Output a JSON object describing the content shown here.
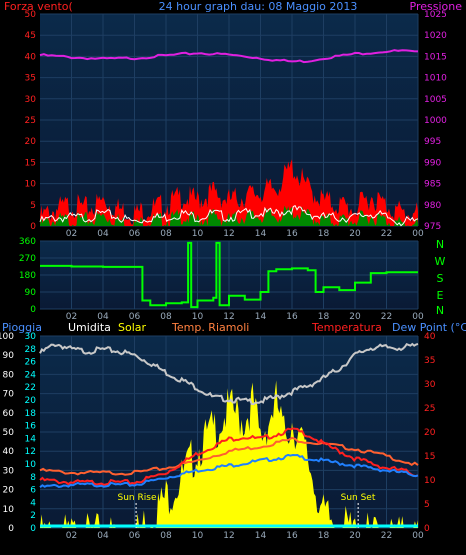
{
  "colors": {
    "background": "#000000",
    "panel_top": "#0b2a4a",
    "panel_bottom": "#0a1a35",
    "grid": "#1e3e62",
    "wind_gust": "#ff0000",
    "wind_avg": "#008800",
    "wind_line": "#ffffff",
    "pressure": "#e020e0",
    "direction": "#00ff00",
    "rain": "#00ffff",
    "humidity": "#c8c8c8",
    "solar": "#ffff00",
    "temp_indoor": "#ff6030",
    "temperature": "#ff2020",
    "dew_point": "#2080ff",
    "label_red": "#ff2020",
    "label_blue": "#4a90ff",
    "label_magenta": "#e020e0",
    "label_white": "#ffffff",
    "label_yellow": "#ffff00",
    "label_orange": "#ff8040",
    "label_green": "#00ff00"
  },
  "header": {
    "wind_label": "Forza vento(",
    "title": "24 hour graph dau: 08 Maggio 2013",
    "pressure_label": "Pressione"
  },
  "compass": {
    "n": "N",
    "w": "W",
    "s": "S",
    "e": "E",
    "n2": "N"
  },
  "bottom_header": {
    "rain": "Pioggia",
    "humidity": "Umidita",
    "solar": "Solar",
    "indoor_temp": "Temp. Riamoli",
    "temperature": "Temperatura",
    "dew_point": "Dew Point (°C)"
  },
  "annotations": {
    "sunrise": "Sun Rise",
    "sunset": "Sun Set"
  },
  "chart_data": [
    {
      "type": "line",
      "name": "wind-pressure",
      "x_ticks": [
        "02",
        "04",
        "06",
        "08",
        "10",
        "12",
        "14",
        "16",
        "18",
        "20",
        "22",
        "00"
      ],
      "y_left_ticks": [
        "0",
        "5",
        "10",
        "15",
        "20",
        "25",
        "30",
        "35",
        "40",
        "45",
        "50"
      ],
      "ylim_left": [
        0,
        50
      ],
      "y_right_ticks": [
        "975",
        "980",
        "985",
        "990",
        "995",
        "1000",
        "1005",
        "1010",
        "1015",
        "1020",
        "1025"
      ],
      "ylim_right": [
        975,
        1025
      ],
      "series": [
        {
          "role": "pressure",
          "axis": "right",
          "x": [
            0,
            2,
            4,
            6,
            8,
            10,
            12,
            14,
            15,
            16,
            17,
            18,
            20,
            22,
            23,
            24
          ],
          "values": [
            1015.3,
            1014.8,
            1014.4,
            1014.6,
            1015.2,
            1015.8,
            1015.4,
            1014.6,
            1014.1,
            1013.8,
            1013.9,
            1014.6,
            1015.6,
            1016.2,
            1016.3,
            1015.9
          ]
        },
        {
          "role": "gust",
          "axis": "left",
          "x": [
            0,
            1,
            2,
            3,
            4,
            5,
            6,
            7,
            8,
            9,
            10,
            11,
            12,
            13,
            14,
            15,
            16,
            17,
            18,
            19,
            20,
            21,
            22,
            23,
            24
          ],
          "values": [
            3,
            5,
            6,
            5,
            7,
            5,
            4,
            5,
            6,
            8,
            7,
            9,
            7,
            8,
            9,
            10,
            15,
            10,
            7,
            6,
            5,
            8,
            6,
            4,
            4
          ]
        },
        {
          "role": "average",
          "axis": "left",
          "x": [
            0,
            1,
            2,
            3,
            4,
            5,
            6,
            7,
            8,
            9,
            10,
            11,
            12,
            13,
            14,
            15,
            16,
            17,
            18,
            19,
            20,
            21,
            22,
            23,
            24
          ],
          "values": [
            1,
            2,
            2,
            2,
            3,
            2,
            1,
            2,
            2,
            3,
            2,
            3,
            2,
            3,
            3,
            3,
            4,
            3,
            2,
            2,
            2,
            3,
            2,
            1,
            1
          ]
        }
      ]
    },
    {
      "type": "line",
      "name": "wind-direction",
      "x_ticks": [
        "02",
        "04",
        "06",
        "08",
        "10",
        "12",
        "14",
        "16",
        "18",
        "20",
        "22",
        "00"
      ],
      "y_ticks": [
        "0",
        "90",
        "180",
        "270",
        "360"
      ],
      "ylim": [
        0,
        360
      ],
      "series": [
        {
          "role": "direction",
          "x": [
            0,
            1,
            2,
            4,
            5,
            6,
            6.5,
            7,
            8,
            9,
            9.4,
            9.6,
            10,
            11,
            11.2,
            11.4,
            12,
            13,
            14,
            14.5,
            15,
            16,
            17,
            17.5,
            18,
            19,
            20,
            21,
            22,
            23,
            24
          ],
          "values": [
            228,
            228,
            225,
            223,
            223,
            223,
            45,
            20,
            30,
            35,
            350,
            10,
            45,
            60,
            350,
            20,
            70,
            50,
            90,
            200,
            210,
            215,
            205,
            90,
            115,
            100,
            140,
            190,
            195,
            195,
            195
          ]
        }
      ]
    },
    {
      "type": "line",
      "name": "temperature-humidity-solar",
      "x_ticks": [
        "02",
        "04",
        "06",
        "08",
        "10",
        "12",
        "14",
        "16",
        "18",
        "20",
        "22",
        "00"
      ],
      "y_left_outer_ticks": [
        "0",
        "10",
        "20",
        "30",
        "40",
        "50",
        "60",
        "70",
        "80",
        "90",
        "100"
      ],
      "ylim_left_outer": [
        0,
        100
      ],
      "y_left_inner_ticks": [
        "0",
        "2",
        "4",
        "6",
        "8",
        "10",
        "12",
        "14",
        "16",
        "18",
        "20",
        "22",
        "24",
        "26",
        "28",
        "30"
      ],
      "ylim_left_inner": [
        0,
        30
      ],
      "y_right_ticks": [
        "0",
        "5",
        "10",
        "15",
        "20",
        "25",
        "30",
        "35",
        "40"
      ],
      "ylim_right": [
        0,
        40
      ],
      "series": [
        {
          "role": "humidity",
          "axis": "left_outer",
          "x": [
            0,
            1,
            2,
            3,
            4,
            5,
            6,
            7,
            8,
            9,
            10,
            11,
            12,
            13,
            14,
            15,
            16,
            17,
            18,
            19,
            20,
            21,
            22,
            23,
            24
          ],
          "values": [
            91,
            96,
            93,
            92,
            93,
            92,
            90,
            86,
            81,
            77,
            73,
            68,
            67,
            66,
            66,
            68,
            71,
            74,
            78,
            83,
            90,
            94,
            94,
            94,
            95
          ]
        },
        {
          "role": "solar",
          "axis": "left_outer",
          "x": [
            0,
            6,
            7,
            8,
            9,
            10,
            11,
            11.5,
            12,
            13,
            13.5,
            14,
            15,
            15.5,
            16,
            17,
            18,
            19,
            20,
            21,
            24
          ],
          "values": [
            0,
            0,
            10,
            20,
            30,
            45,
            55,
            60,
            66,
            60,
            70,
            50,
            70,
            52,
            60,
            40,
            10,
            5,
            2,
            0,
            0
          ]
        },
        {
          "role": "temp_indoor",
          "axis": "right",
          "x": [
            0,
            2,
            4,
            6,
            8,
            10,
            12,
            14,
            16,
            18,
            20,
            22,
            24
          ],
          "values": [
            12,
            11.5,
            11.5,
            11.5,
            12.5,
            14,
            16,
            17,
            18.5,
            17.5,
            16.5,
            15,
            13
          ]
        },
        {
          "role": "temperature",
          "axis": "right",
          "x": [
            0,
            2,
            4,
            6,
            7,
            8,
            9,
            10,
            11,
            12,
            13,
            14,
            15,
            16,
            17,
            18,
            19,
            20,
            21,
            22,
            23,
            24
          ],
          "values": [
            10,
            9.5,
            9.5,
            9.5,
            10.5,
            11.5,
            13.5,
            15.5,
            17,
            18.5,
            19,
            18.5,
            19.5,
            20.5,
            19.5,
            17.5,
            16,
            14.5,
            13.5,
            12.5,
            12,
            11
          ]
        },
        {
          "role": "dew_point",
          "axis": "right",
          "x": [
            0,
            2,
            4,
            6,
            8,
            10,
            12,
            14,
            16,
            17,
            18,
            20,
            22,
            24
          ],
          "values": [
            8.5,
            9,
            9,
            9,
            10.5,
            12,
            13,
            14,
            15,
            14.5,
            14,
            13,
            12,
            11
          ]
        },
        {
          "role": "rain",
          "axis": "left_outer",
          "x": [
            0,
            24
          ],
          "values": [
            0,
            0
          ]
        }
      ]
    }
  ]
}
